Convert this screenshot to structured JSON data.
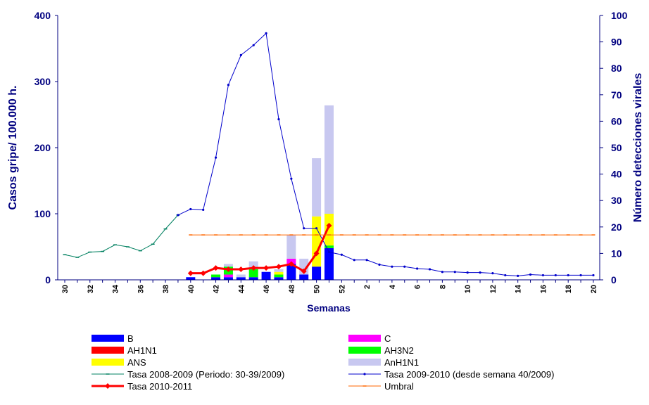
{
  "chart_data": {
    "type": "bar",
    "title": "",
    "xlabel": "Semanas",
    "ylabel_left": "Casos gripe/ 100.000 h.",
    "ylabel_right": "Número detecciones virales",
    "ylim_left": [
      0,
      400
    ],
    "ylim_right": [
      0,
      100
    ],
    "yticks_left": [
      "0",
      "100",
      "200",
      "300",
      "400"
    ],
    "yticks_right": [
      "0",
      "10",
      "20",
      "30",
      "40",
      "50",
      "60",
      "70",
      "80",
      "90",
      "100"
    ],
    "categories": [
      "30",
      "31",
      "32",
      "33",
      "34",
      "35",
      "36",
      "37",
      "38",
      "39",
      "40",
      "41",
      "42",
      "43",
      "44",
      "45",
      "46",
      "47",
      "48",
      "49",
      "50",
      "51",
      "52",
      "1",
      "2",
      "3",
      "4",
      "5",
      "6",
      "7",
      "8",
      "9",
      "10",
      "11",
      "12",
      "13",
      "14",
      "15",
      "16",
      "17",
      "18",
      "19",
      "20"
    ],
    "x_tick_labels": [
      "30",
      "32",
      "34",
      "36",
      "38",
      "40",
      "42",
      "44",
      "46",
      "48",
      "50",
      "52",
      "2",
      "4",
      "6",
      "8",
      "10",
      "12",
      "14",
      "16",
      "18",
      "20"
    ],
    "stack_order": [
      "B",
      "C",
      "AH1N1",
      "AH3N2",
      "ANS",
      "AnH1N1"
    ],
    "bar_series": [
      {
        "name": "B",
        "color": "#0000ff",
        "values": [
          0,
          0,
          0,
          0,
          0,
          0,
          0,
          0,
          0,
          0,
          1,
          0,
          1,
          1,
          1,
          1,
          3,
          1,
          6,
          2,
          5,
          12,
          0,
          0,
          0,
          0,
          0,
          0,
          0,
          0,
          0,
          0,
          0,
          0,
          0,
          0,
          0,
          0,
          0,
          0,
          0,
          0,
          0
        ]
      },
      {
        "name": "C",
        "color": "#ff00ff",
        "values": [
          0,
          0,
          0,
          0,
          0,
          0,
          0,
          0,
          0,
          0,
          0,
          0,
          0,
          1,
          0,
          0,
          0,
          0,
          2,
          0,
          0,
          0,
          0,
          0,
          0,
          0,
          0,
          0,
          0,
          0,
          0,
          0,
          0,
          0,
          0,
          0,
          0,
          0,
          0,
          0,
          0,
          0,
          0
        ]
      },
      {
        "name": "AH1N1",
        "color": "#ff0000",
        "values": [
          0,
          0,
          0,
          0,
          0,
          0,
          0,
          0,
          0,
          0,
          0,
          0,
          0,
          0,
          0,
          0,
          0,
          0,
          0,
          0,
          0,
          0,
          0,
          0,
          0,
          0,
          0,
          0,
          0,
          0,
          0,
          0,
          0,
          0,
          0,
          0,
          0,
          0,
          0,
          0,
          0,
          0,
          0
        ]
      },
      {
        "name": "AH3N2",
        "color": "#00ff00",
        "values": [
          0,
          0,
          0,
          0,
          0,
          0,
          0,
          0,
          0,
          0,
          0,
          0,
          1,
          3,
          0,
          3,
          0,
          1,
          0,
          0,
          0,
          1,
          0,
          0,
          0,
          0,
          0,
          0,
          0,
          0,
          0,
          0,
          0,
          0,
          0,
          0,
          0,
          0,
          0,
          0,
          0,
          0,
          0
        ]
      },
      {
        "name": "ANS",
        "color": "#ffff00",
        "values": [
          0,
          0,
          0,
          0,
          0,
          0,
          0,
          0,
          0,
          0,
          0,
          0,
          0,
          0,
          0,
          0,
          0,
          1,
          0,
          0,
          19,
          12,
          0,
          0,
          0,
          0,
          0,
          0,
          0,
          0,
          0,
          0,
          0,
          0,
          0,
          0,
          0,
          0,
          0,
          0,
          0,
          0,
          0
        ]
      },
      {
        "name": "AnH1N1",
        "color": "#c8c8f0",
        "values": [
          0,
          0,
          0,
          0,
          0,
          0,
          0,
          0,
          0,
          0,
          0,
          0,
          0,
          1,
          1,
          3,
          0,
          1,
          9,
          6,
          22,
          41,
          0,
          0,
          0,
          0,
          0,
          0,
          0,
          0,
          0,
          0,
          0,
          0,
          0,
          0,
          0,
          0,
          0,
          0,
          0,
          0,
          0
        ]
      }
    ],
    "line_series": [
      {
        "name": "Tasa 2008-2009 (Periodo: 30-39/2009)",
        "color": "#008060",
        "marker": "dash",
        "values": [
          38,
          34,
          42,
          43,
          53,
          50,
          44,
          54,
          77,
          98,
          null,
          null,
          null,
          null,
          null,
          null,
          null,
          null,
          null,
          null,
          null,
          null,
          null,
          null,
          null,
          null,
          null,
          null,
          null,
          null,
          null,
          null,
          null,
          null,
          null,
          null,
          null,
          null,
          null,
          null,
          null,
          null,
          null
        ]
      },
      {
        "name": "Tasa 2009-2010 (desde semana 40/2009)",
        "color": "#0000cc",
        "marker": "dot",
        "values": [
          null,
          null,
          null,
          null,
          null,
          null,
          null,
          null,
          null,
          98,
          107,
          106,
          185,
          295,
          340,
          355,
          373,
          243,
          153,
          78,
          78,
          42,
          38,
          30,
          30,
          23,
          20,
          20,
          17,
          16,
          12,
          12,
          11,
          11,
          10,
          7,
          6,
          8,
          7,
          7,
          7,
          7,
          7
        ]
      },
      {
        "name": "Tasa 2010-2011",
        "color": "#ff0000",
        "marker": "diamond",
        "values": [
          null,
          null,
          null,
          null,
          null,
          null,
          null,
          null,
          null,
          null,
          10,
          10,
          18,
          16,
          16,
          18,
          18,
          20,
          24,
          13,
          40,
          82,
          null,
          null,
          null,
          null,
          null,
          null,
          null,
          null,
          null,
          null,
          null,
          null,
          null,
          null,
          null,
          null,
          null,
          null,
          null,
          null,
          null
        ]
      },
      {
        "name": "Umbral",
        "color": "#ff6600",
        "marker": "dash",
        "values": [
          null,
          null,
          null,
          null,
          null,
          null,
          null,
          null,
          null,
          null,
          68,
          68,
          68,
          68,
          68,
          68,
          68,
          68,
          68,
          68,
          68,
          68,
          68,
          68,
          68,
          68,
          68,
          68,
          68,
          68,
          68,
          68,
          68,
          68,
          68,
          68,
          68,
          68,
          68,
          68,
          68,
          68,
          68
        ]
      }
    ],
    "legend": {
      "placement": "bottom",
      "items": [
        {
          "label": "B",
          "kind": "bar",
          "color": "#0000ff"
        },
        {
          "label": "C",
          "kind": "bar",
          "color": "#ff00ff"
        },
        {
          "label": "AH1N1",
          "kind": "bar",
          "color": "#ff0000"
        },
        {
          "label": "AH3N2",
          "kind": "bar",
          "color": "#00ff00"
        },
        {
          "label": "ANS",
          "kind": "bar",
          "color": "#ffff00"
        },
        {
          "label": "AnH1N1",
          "kind": "bar",
          "color": "#c8c8f0"
        },
        {
          "label": "Tasa 2008-2009 (Periodo: 30-39/2009)",
          "kind": "line",
          "color": "#008060",
          "marker": "dash"
        },
        {
          "label": "Tasa 2009-2010 (desde semana 40/2009)",
          "kind": "line",
          "color": "#0000cc",
          "marker": "dot"
        },
        {
          "label": "Tasa 2010-2011",
          "kind": "line",
          "color": "#ff0000",
          "marker": "diamond"
        },
        {
          "label": "Umbral",
          "kind": "line",
          "color": "#ff6600",
          "marker": "dash"
        }
      ]
    },
    "grid": false,
    "axis_color": "#000080"
  }
}
